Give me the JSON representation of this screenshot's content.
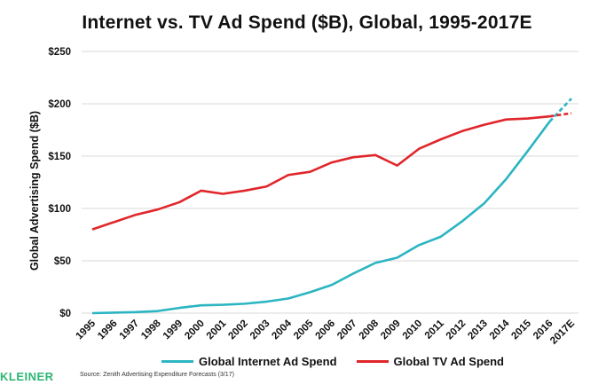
{
  "chart_data": {
    "type": "line",
    "title": "Internet vs. TV Ad Spend ($B), Global, 1995-2017E",
    "ylabel": "Global Advertising Spend ($B)",
    "xlabel": "",
    "ylim": [
      0,
      250
    ],
    "yticks": [
      "$0",
      "$50",
      "$100",
      "$150",
      "$200",
      "$250"
    ],
    "ytick_values": [
      0,
      50,
      100,
      150,
      200,
      250
    ],
    "categories": [
      "1995",
      "1996",
      "1997",
      "1998",
      "1999",
      "2000",
      "2001",
      "2002",
      "2003",
      "2004",
      "2005",
      "2006",
      "2007",
      "2008",
      "2009",
      "2010",
      "2011",
      "2012",
      "2013",
      "2014",
      "2015",
      "2016",
      "2017E"
    ],
    "series": [
      {
        "name": "Global Internet Ad Spend",
        "color": "#2bb5c2",
        "projected_last": true,
        "values": [
          0,
          0.5,
          1,
          2,
          5,
          7.5,
          8,
          9,
          11,
          14,
          20,
          27,
          38,
          48,
          53,
          65,
          73,
          88,
          105,
          128,
          155,
          183,
          205
        ]
      },
      {
        "name": "Global TV Ad Spend",
        "color": "#e0262b",
        "projected_last": true,
        "values": [
          80,
          87,
          94,
          99,
          106,
          117,
          114,
          117,
          121,
          132,
          135,
          144,
          149,
          151,
          141,
          157,
          166,
          174,
          180,
          185,
          186,
          188,
          191
        ]
      }
    ],
    "grid": true,
    "legend": "bottom"
  },
  "source": "Source: Zenith Advertising Expenditure Forecasts (3/17)",
  "logo": "KLEINER"
}
